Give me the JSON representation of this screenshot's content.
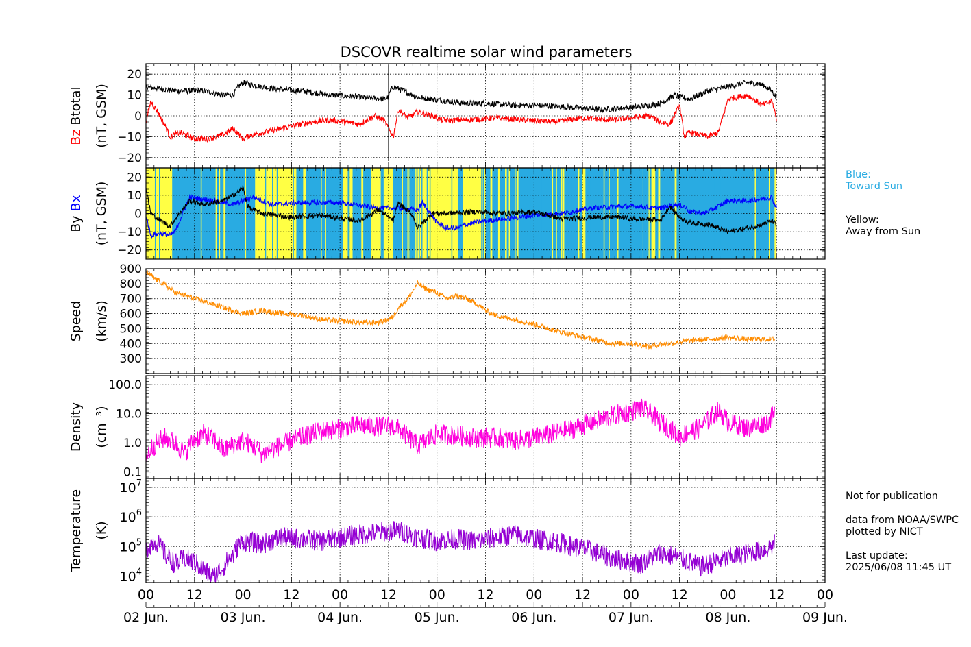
{
  "title": "DSCOVR realtime solar wind parameters",
  "colors": {
    "bz": "#ff0000",
    "btotal": "#000000",
    "bx": "#0000ff",
    "by": "#000000",
    "speed": "#ff8c00",
    "density": "#ff00dd",
    "temperature": "#9400d3",
    "toward_sun": "#29abe2",
    "away_from_sun": "#ffff44"
  },
  "side_notes": {
    "toward": "Blue:\nToward Sun",
    "away": "Yellow:\nAway from Sun",
    "notice": "Not for publication",
    "source": "data from NOAA/SWPC\nplotted by NICT",
    "update_label": "Last update:",
    "update_value": "2025/06/08 11:45 UT"
  },
  "chart_data": [
    {
      "type": "line",
      "panel": "magnetic-field-total",
      "ylabel_parts": [
        {
          "text": "Bz",
          "color": "#ff0000"
        },
        {
          "text": "  Btotal",
          "color": "#000000"
        }
      ],
      "ylabel2": "(nT, GSM)",
      "yticks": [
        "20",
        "10",
        "0",
        "−10",
        "−20"
      ],
      "ylim": [
        -25,
        25
      ],
      "series": [
        {
          "name": "Btotal",
          "color": "#000000",
          "t": [
            0,
            0.15,
            0.3,
            0.6,
            0.8,
            0.9,
            0.95,
            1.0,
            1.08,
            1.3,
            1.6,
            1.9,
            2.2,
            2.45,
            2.5,
            2.52,
            2.55,
            2.6,
            2.7,
            2.8,
            2.95,
            3.1,
            3.3,
            3.5,
            3.8,
            4.1,
            4.4,
            4.7,
            5.0,
            5.2,
            5.3,
            5.45,
            5.5,
            5.6,
            5.8,
            6.0,
            6.2,
            6.35,
            6.45,
            6.48,
            6.5
          ],
          "v": [
            14,
            13,
            12,
            12,
            10,
            10,
            14,
            16,
            15,
            13,
            12,
            10,
            9,
            8,
            9,
            12,
            14,
            13,
            11,
            9,
            8,
            7,
            6,
            6,
            5,
            5,
            4,
            3,
            4,
            5,
            6,
            10,
            9,
            8,
            12,
            14,
            16,
            15,
            12,
            10,
            9
          ]
        },
        {
          "name": "Bz",
          "color": "#ff0000",
          "t": [
            0,
            0.05,
            0.12,
            0.2,
            0.25,
            0.35,
            0.5,
            0.65,
            0.8,
            0.9,
            1.0,
            1.1,
            1.3,
            1.5,
            1.7,
            1.9,
            2.05,
            2.2,
            2.35,
            2.45,
            2.55,
            2.6,
            2.7,
            2.8,
            2.95,
            3.05,
            3.3,
            3.6,
            3.9,
            4.2,
            4.5,
            4.8,
            5.0,
            5.2,
            5.3,
            5.4,
            5.5,
            5.55,
            5.6,
            5.8,
            5.9,
            6.0,
            6.2,
            6.35,
            6.45,
            6.48,
            6.5
          ],
          "v": [
            -3,
            7,
            2,
            -5,
            -10,
            -8,
            -11,
            -11,
            -9,
            -6,
            -11,
            -9,
            -7,
            -5,
            -3,
            -2,
            -3,
            -4,
            0,
            -2,
            -10,
            3,
            -1,
            2,
            0,
            -2,
            -2,
            -1,
            -2,
            -3,
            -1,
            -2,
            -1,
            0,
            -3,
            -4,
            5,
            -10,
            -8,
            -10,
            -8,
            8,
            10,
            5,
            7,
            3,
            -3
          ]
        }
      ]
    },
    {
      "type": "line",
      "panel": "magnetic-field-components",
      "ylabel_parts": [
        {
          "text": "By",
          "color": "#000000"
        },
        {
          "text": "  Bx",
          "color": "#0000ff"
        }
      ],
      "ylabel2": "(nT, GSM)",
      "yticks": [
        "20",
        "10",
        "0",
        "−10",
        "−20"
      ],
      "ylim": [
        -25,
        25
      ],
      "background_sectors": "alternating blue (toward) / yellow (away) bands spanning 02 Jun 00 to 08 Jun 12",
      "series": [
        {
          "name": "Bx",
          "color": "#0000ff",
          "t": [
            0,
            0.05,
            0.15,
            0.25,
            0.3,
            0.45,
            0.7,
            0.9,
            1.0,
            1.1,
            1.3,
            1.6,
            2.0,
            2.4,
            2.6,
            2.8,
            2.85,
            3.0,
            3.1,
            3.2,
            3.3,
            3.5,
            3.7,
            4.0,
            4.3,
            4.6,
            4.9,
            5.1,
            5.2,
            5.3,
            5.45,
            5.55,
            5.6,
            5.75,
            5.9,
            6.0,
            6.2,
            6.35,
            6.45,
            6.48,
            6.5
          ],
          "v": [
            -1,
            -12,
            -11,
            -12,
            -10,
            9,
            7,
            5,
            7,
            9,
            5,
            6,
            6,
            3,
            3,
            2,
            6,
            -5,
            -8,
            -8,
            -6,
            -4,
            -3,
            -1,
            0,
            3,
            4,
            4,
            3,
            3,
            5,
            4,
            1,
            0,
            4,
            7,
            7,
            8,
            9,
            5,
            4
          ]
        },
        {
          "name": "By",
          "color": "#000000",
          "t": [
            0,
            0.05,
            0.15,
            0.25,
            0.3,
            0.45,
            0.6,
            0.8,
            0.9,
            1.0,
            1.05,
            1.1,
            1.2,
            1.5,
            1.8,
            2.2,
            2.4,
            2.55,
            2.6,
            2.75,
            2.8,
            2.95,
            3.1,
            3.4,
            3.7,
            4.0,
            4.3,
            4.6,
            4.9,
            5.0,
            5.2,
            5.3,
            5.4,
            5.5,
            5.6,
            5.8,
            6.0,
            6.2,
            6.35,
            6.45,
            6.48,
            6.5
          ],
          "v": [
            14,
            0,
            -4,
            -7,
            -3,
            7,
            5,
            7,
            10,
            14,
            4,
            2,
            0,
            -2,
            -1,
            -4,
            2,
            -4,
            6,
            -1,
            -8,
            0,
            0,
            1,
            0,
            1,
            -3,
            -2,
            -2,
            -3,
            -3,
            -4,
            4,
            -2,
            -5,
            -6,
            -10,
            -8,
            -6,
            -4,
            -5,
            -8
          ]
        }
      ]
    },
    {
      "type": "line",
      "panel": "speed",
      "ylabel": "Speed",
      "ylabel2": "(km/s)",
      "yticks": [
        "900",
        "800",
        "700",
        "600",
        "500",
        "400",
        "300"
      ],
      "ylim": [
        200,
        900
      ],
      "series": [
        {
          "name": "Speed",
          "color": "#ff8c00",
          "t": [
            0,
            0.1,
            0.2,
            0.3,
            0.4,
            0.6,
            0.8,
            1.0,
            1.2,
            1.4,
            1.6,
            1.8,
            2.0,
            2.2,
            2.4,
            2.5,
            2.55,
            2.6,
            2.7,
            2.8,
            2.9,
            3.0,
            3.1,
            3.2,
            3.3,
            3.4,
            3.5,
            3.6,
            3.8,
            4.0,
            4.2,
            4.4,
            4.6,
            4.8,
            5.0,
            5.1,
            5.2,
            5.3,
            5.4,
            5.5,
            5.6,
            5.8,
            6.0,
            6.2,
            6.4,
            6.48
          ],
          "v": [
            880,
            830,
            790,
            740,
            720,
            680,
            640,
            600,
            620,
            600,
            590,
            560,
            550,
            540,
            540,
            560,
            580,
            640,
            700,
            800,
            760,
            740,
            700,
            720,
            700,
            670,
            620,
            590,
            560,
            530,
            490,
            460,
            430,
            400,
            400,
            390,
            380,
            395,
            400,
            410,
            420,
            430,
            440,
            430,
            430,
            430
          ]
        }
      ]
    },
    {
      "type": "line",
      "panel": "density",
      "ylabel": "Density",
      "ylabel2": "(cm⁻³)",
      "yscale": "log",
      "yticks": [
        "100.0",
        "10.0",
        "1.0",
        "0.1"
      ],
      "ylim": [
        0.06,
        200
      ],
      "series": [
        {
          "name": "Density",
          "color": "#ff00dd",
          "t": [
            0,
            0.2,
            0.4,
            0.6,
            0.8,
            1.0,
            1.2,
            1.4,
            1.6,
            1.8,
            2.0,
            2.2,
            2.4,
            2.5,
            2.6,
            2.7,
            2.8,
            2.9,
            3.0,
            3.2,
            3.4,
            3.6,
            3.8,
            4.0,
            4.2,
            4.4,
            4.6,
            4.8,
            5.0,
            5.1,
            5.2,
            5.3,
            5.4,
            5.5,
            5.6,
            5.7,
            5.8,
            5.9,
            6.0,
            6.1,
            6.2,
            6.3,
            6.4,
            6.48
          ],
          "v": [
            0.3,
            1.5,
            0.4,
            2,
            0.5,
            1.2,
            0.4,
            0.8,
            1.5,
            2.5,
            3,
            4,
            3.5,
            4,
            3,
            1.5,
            0.8,
            1.2,
            2,
            1.8,
            1.5,
            1.5,
            1.2,
            1.5,
            2,
            3,
            5,
            8,
            12,
            15,
            10,
            5,
            3,
            1.5,
            2.5,
            3,
            6,
            12,
            5,
            4,
            3,
            4,
            5,
            9
          ]
        }
      ]
    },
    {
      "type": "line",
      "panel": "temperature",
      "ylabel": "Temperature",
      "ylabel2": "(K)",
      "yscale": "log",
      "ytick_exponents": [
        "7",
        "6",
        "5",
        "4"
      ],
      "ylim": [
        6000,
        20000000
      ],
      "series": [
        {
          "name": "Temperature",
          "color": "#9400d3",
          "t": [
            0,
            0.1,
            0.2,
            0.3,
            0.4,
            0.6,
            0.7,
            0.8,
            0.9,
            1.0,
            1.2,
            1.4,
            1.6,
            1.8,
            2.0,
            2.2,
            2.4,
            2.6,
            2.8,
            3.0,
            3.2,
            3.4,
            3.6,
            3.8,
            4.0,
            4.2,
            4.4,
            4.6,
            4.8,
            5.0,
            5.1,
            5.2,
            5.3,
            5.4,
            5.5,
            5.6,
            5.7,
            5.8,
            6.0,
            6.2,
            6.4,
            6.48
          ],
          "v": [
            80000,
            150000,
            50000,
            25000,
            40000,
            15000,
            9000,
            20000,
            50000,
            150000,
            120000,
            200000,
            180000,
            150000,
            200000,
            250000,
            300000,
            350000,
            200000,
            150000,
            180000,
            150000,
            200000,
            250000,
            180000,
            150000,
            100000,
            70000,
            40000,
            30000,
            25000,
            40000,
            60000,
            50000,
            40000,
            30000,
            20000,
            25000,
            40000,
            60000,
            80000,
            120000
          ]
        }
      ]
    }
  ],
  "x_axis": {
    "hour_ticks": [
      "00",
      "12",
      "00",
      "12",
      "00",
      "12",
      "00",
      "12",
      "00",
      "12",
      "00",
      "12",
      "00",
      "12",
      "00"
    ],
    "day_labels": [
      "02 Jun.",
      "03 Jun.",
      "04 Jun.",
      "05 Jun.",
      "06 Jun.",
      "07 Jun.",
      "08 Jun.",
      "09 Jun."
    ],
    "range_days": [
      0,
      7
    ]
  }
}
